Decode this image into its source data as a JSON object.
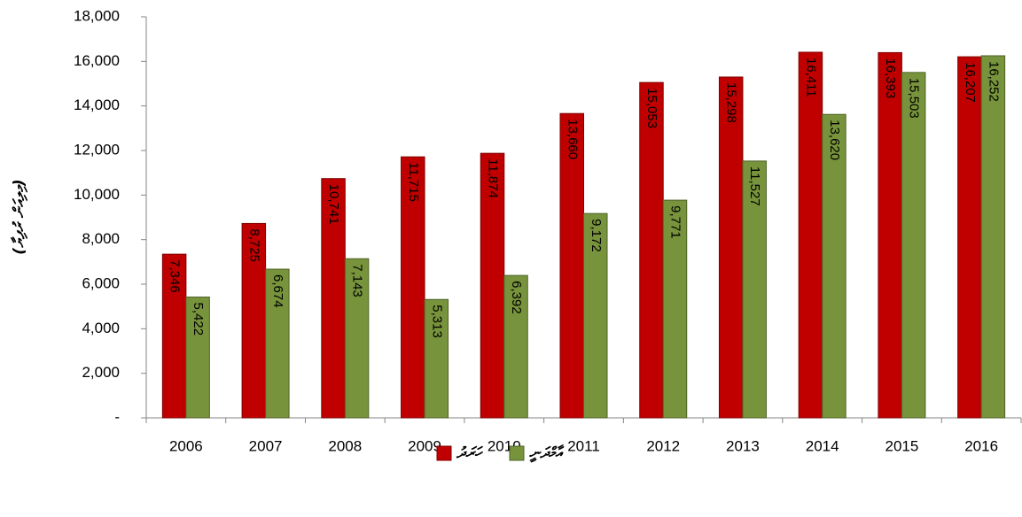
{
  "chart_data": {
    "type": "bar",
    "y_label": "(މިލިއަން ރުފިޔާ)",
    "categories": [
      "2006",
      "2007",
      "2008",
      "2009",
      "2010",
      "2011",
      "2012",
      "2013",
      "2014",
      "2015",
      "2016"
    ],
    "series": [
      {
        "name": "ހަރަދު",
        "color": "#c00000",
        "values": [
          7346,
          8725,
          10741,
          11715,
          11874,
          13660,
          15053,
          15298,
          16411,
          16393,
          16207
        ],
        "value_labels": [
          "7,346",
          "8,725",
          "10,741",
          "11,715",
          "11,874",
          "13,660",
          "15,053",
          "15,298",
          "16,411",
          "16,393",
          "16,207"
        ]
      },
      {
        "name": "އާމްދަނީ",
        "color": "#77933c",
        "values": [
          5422,
          6674,
          7143,
          5313,
          6392,
          9172,
          9771,
          11527,
          13620,
          15503,
          16252
        ],
        "value_labels": [
          "5,422",
          "6,674",
          "7,143",
          "5,313",
          "6,392",
          "9,172",
          "9,771",
          "11,527",
          "13,620",
          "15,503",
          "16,252"
        ]
      }
    ],
    "ylim": [
      0,
      18000
    ],
    "yticks": [
      {
        "value": 0,
        "label": "-"
      },
      {
        "value": 2000,
        "label": "2,000"
      },
      {
        "value": 4000,
        "label": "4,000"
      },
      {
        "value": 6000,
        "label": "6,000"
      },
      {
        "value": 8000,
        "label": "8,000"
      },
      {
        "value": 10000,
        "label": "10,000"
      },
      {
        "value": 12000,
        "label": "12,000"
      },
      {
        "value": 14000,
        "label": "14,000"
      },
      {
        "value": 16000,
        "label": "16,000"
      },
      {
        "value": 18000,
        "label": "18,000"
      }
    ],
    "grid": false,
    "legend": "bottom"
  }
}
